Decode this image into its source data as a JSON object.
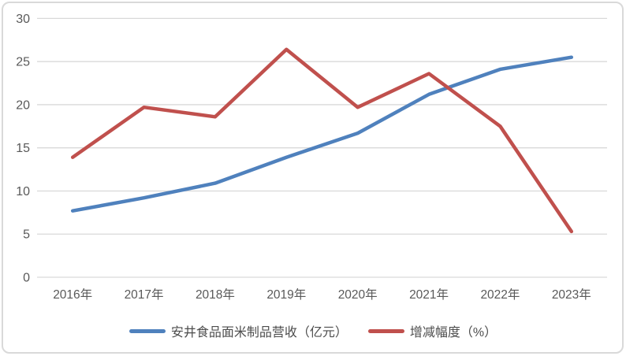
{
  "ui": {
    "background": "#ffffff",
    "frame_border_color": "#d9d9d9",
    "gridline_color": "#d9d9d9",
    "tick_text_color": "#595959",
    "legend_text_color": "#4d4d4d"
  },
  "chart_data": {
    "type": "line",
    "title": "",
    "xlabel": "",
    "ylabel": "",
    "categories": [
      "2016年",
      "2017年",
      "2018年",
      "2019年",
      "2020年",
      "2021年",
      "2022年",
      "2023年"
    ],
    "series": [
      {
        "name": "安井食品面米制品营收（亿元）",
        "color": "#4F81BD",
        "values": [
          7.7,
          9.2,
          10.9,
          13.9,
          16.7,
          21.2,
          24.1,
          25.5
        ]
      },
      {
        "name": "增减幅度（%）",
        "color": "#C0504D",
        "values": [
          13.9,
          19.7,
          18.6,
          26.4,
          19.7,
          23.6,
          17.5,
          5.3
        ]
      }
    ],
    "ylim": [
      0,
      30
    ],
    "ytick_step": 5,
    "yticks": [
      0,
      5,
      10,
      15,
      20,
      25,
      30
    ],
    "grid": true,
    "legend_position": "bottom"
  }
}
